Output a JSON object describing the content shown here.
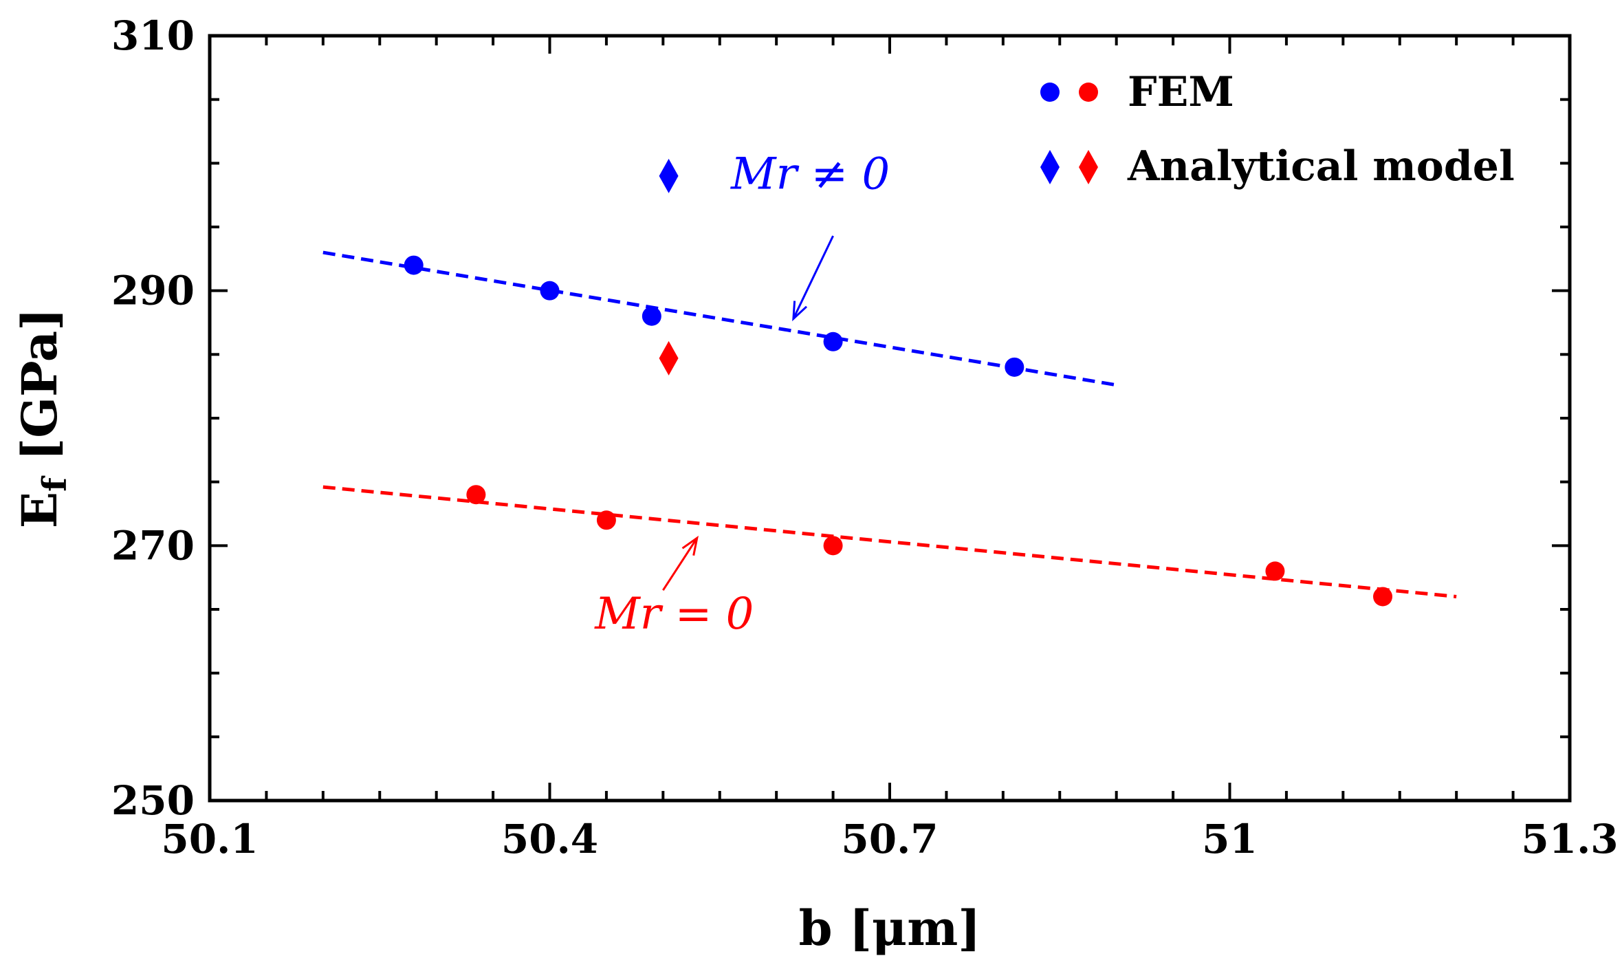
{
  "chart_data": {
    "type": "scatter",
    "title": "",
    "xlabel": "b [μm]",
    "ylabel_main": "E",
    "ylabel_sub": "f",
    "ylabel_unit": "[GPa]",
    "xlim": [
      50.1,
      51.3
    ],
    "ylim": [
      250,
      310
    ],
    "xticks": [
      50.1,
      50.4,
      50.7,
      51,
      51.3
    ],
    "xtick_labels": [
      "50.1",
      "50.4",
      "50.7",
      "51",
      "51.3"
    ],
    "yticks": [
      250,
      270,
      290,
      310
    ],
    "ytick_labels": [
      "250",
      "270",
      "290",
      "310"
    ],
    "x_minor_step": 0.05,
    "y_minor_step": 5,
    "series": [
      {
        "name": "FEM (Mr ≠ 0)",
        "marker": "circle",
        "color": "#0000ff",
        "x": [
          50.28,
          50.4,
          50.49,
          50.65,
          50.81
        ],
        "y": [
          292,
          290,
          288,
          286,
          284
        ]
      },
      {
        "name": "FEM (Mr = 0)",
        "marker": "circle",
        "color": "#ff0000",
        "x": [
          50.335,
          50.45,
          50.65,
          51.04,
          51.135
        ],
        "y": [
          274,
          272,
          270,
          268,
          266
        ]
      },
      {
        "name": "Analytical model (Mr ≠ 0)",
        "marker": "diamond",
        "color": "#0000ff",
        "x": [
          50.505
        ],
        "y": [
          299
        ]
      },
      {
        "name": "Analytical model (Mr = 0)",
        "marker": "diamond",
        "color": "#ff0000",
        "x": [
          50.505
        ],
        "y": [
          284.7
        ]
      }
    ],
    "fit_lines": [
      {
        "name": "Mr ≠ 0 fit",
        "color": "#0000ff",
        "x": [
          50.2,
          50.9
        ],
        "y": [
          293,
          282.6
        ]
      },
      {
        "name": "Mr = 0 fit",
        "color": "#ff0000",
        "x": [
          50.2,
          51.2
        ],
        "y": [
          274.6,
          266
        ]
      }
    ],
    "legend": {
      "placement": "top-right",
      "entries": [
        {
          "label": "FEM",
          "marker": "circle",
          "colors": [
            "#0000ff",
            "#ff0000"
          ]
        },
        {
          "label": "Analytical model",
          "marker": "diamond",
          "colors": [
            "#0000ff",
            "#ff0000"
          ]
        }
      ]
    },
    "annotations": [
      {
        "text": "Mr ≠ 0",
        "color": "#0000ff",
        "text_at": [
          50.63,
          298
        ],
        "arrow_from": [
          50.65,
          294.3
        ],
        "arrow_to": [
          50.615,
          287.8
        ]
      },
      {
        "text": "Mr = 0",
        "color": "#ff0000",
        "text_at": [
          50.51,
          263.5
        ],
        "arrow_from": [
          50.5,
          266.5
        ],
        "arrow_to": [
          50.53,
          270.6
        ]
      }
    ],
    "grid": false
  }
}
